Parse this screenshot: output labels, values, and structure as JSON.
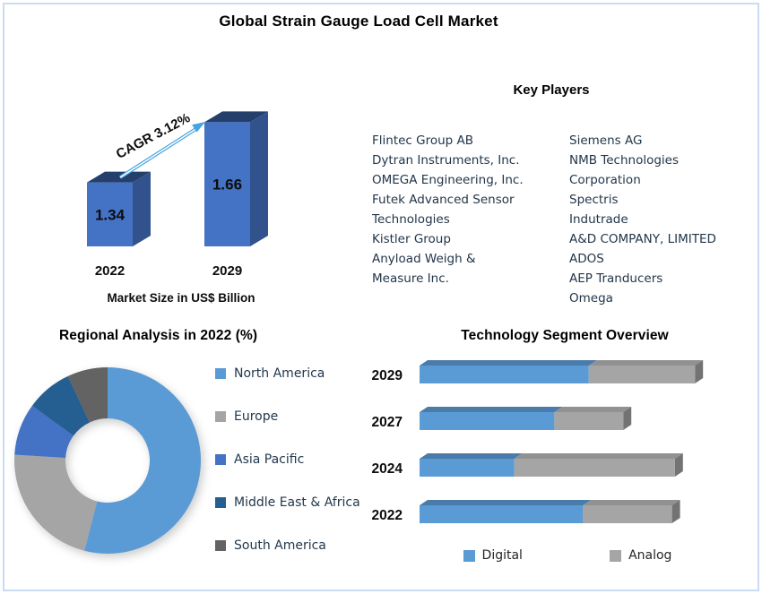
{
  "title": "Global Strain Gauge Load Cell Market",
  "frame_color": "#CADCF4",
  "key_players": {
    "heading": "Key Players",
    "column_left": [
      "Flintec Group AB",
      "Dytran Instruments, Inc.",
      "OMEGA Engineering, Inc.",
      "Futek Advanced Sensor",
      "Technologies",
      "Kistler Group",
      "Anyload Weigh &",
      "Measure Inc."
    ],
    "column_right": [
      "Siemens AG",
      "NMB Technologies",
      "Corporation",
      "Spectris",
      "Indutrade",
      "A&D COMPANY, LIMITED",
      "ADOS",
      "AEP Tranducers",
      "Omega"
    ]
  },
  "chart_data": [
    {
      "id": "market_size",
      "type": "bar",
      "categories": [
        "2022",
        "2029"
      ],
      "values": [
        1.34,
        1.66
      ],
      "caption": "Market Size in US$ Billion",
      "annotation": "CAGR 3.12%",
      "bar_color": "#4472C4",
      "arrow_color": "#45A3DE",
      "value_axis_implied_min": 1.0
    },
    {
      "id": "regional_analysis",
      "type": "pie",
      "donut": true,
      "title": "Regional Analysis in 2022 (%)",
      "labels": [
        "North America",
        "Europe",
        "Asia Pacific",
        "Middle East & Africa",
        "South America"
      ],
      "values": [
        54,
        22,
        9,
        8,
        7
      ],
      "colors": [
        "#5B9BD5",
        "#A5A5A5",
        "#4472C4",
        "#255E91",
        "#636363"
      ],
      "legend_position": "right"
    },
    {
      "id": "technology_segment",
      "type": "bar",
      "orientation": "horizontal_stacked",
      "title": "Technology Segment Overview",
      "categories": [
        "2029",
        "2027",
        "2024",
        "2022"
      ],
      "series": [
        {
          "name": "Digital",
          "color": "#5B9BD5",
          "values": [
            59,
            47,
            33,
            57
          ]
        },
        {
          "name": "Analog",
          "color": "#A5A5A5",
          "values": [
            37,
            24,
            56,
            31
          ]
        }
      ],
      "xlim": [
        0,
        100
      ],
      "legend_position": "bottom",
      "grid": false
    }
  ]
}
